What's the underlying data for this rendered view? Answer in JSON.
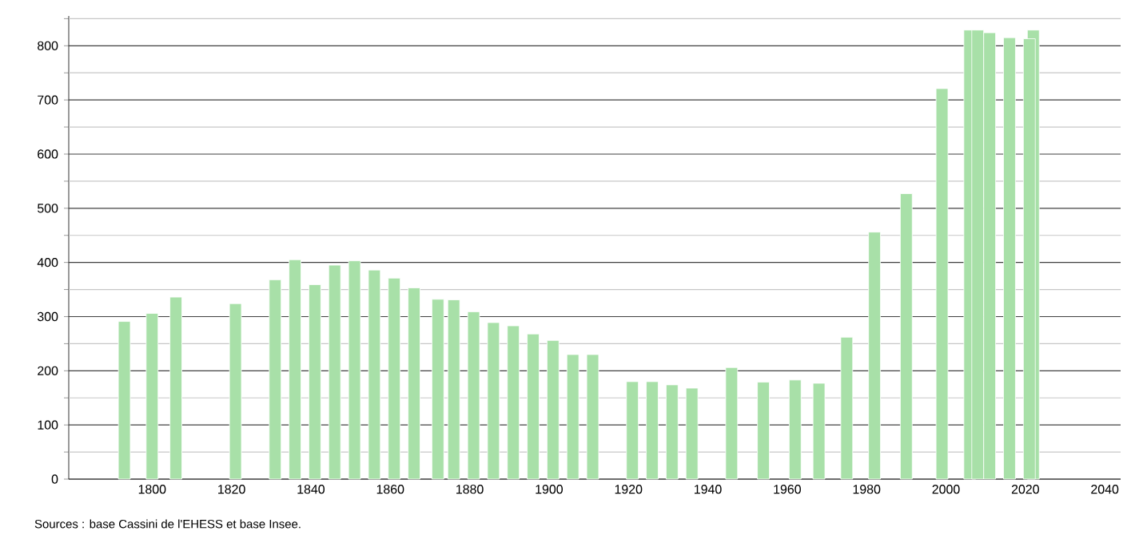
{
  "chart_data": {
    "type": "bar",
    "x": [
      1793,
      1800,
      1806,
      1821,
      1831,
      1836,
      1841,
      1846,
      1851,
      1856,
      1861,
      1866,
      1872,
      1876,
      1881,
      1886,
      1891,
      1896,
      1901,
      1906,
      1911,
      1921,
      1926,
      1931,
      1936,
      1946,
      1954,
      1962,
      1968,
      1975,
      1982,
      1990,
      1999,
      2006,
      2008,
      2011,
      2016,
      2021,
      2022
    ],
    "values": [
      291,
      306,
      336,
      324,
      368,
      405,
      359,
      395,
      403,
      386,
      371,
      353,
      332,
      331,
      309,
      289,
      283,
      268,
      256,
      230,
      230,
      180,
      180,
      174,
      168,
      206,
      179,
      183,
      177,
      262,
      456,
      527,
      721,
      829,
      829,
      824,
      815,
      813,
      829
    ],
    "color": "#a8e0a8",
    "xlim": [
      1779,
      2044
    ],
    "xticks": [
      1800,
      1820,
      1840,
      1860,
      1880,
      1900,
      1920,
      1940,
      1960,
      1980,
      2000,
      2020,
      2040
    ],
    "ylim": [
      0,
      855
    ],
    "yticks": [
      0,
      {
        "value": 50,
        "label": null
      },
      100,
      {
        "value": 150,
        "label": null
      },
      200,
      {
        "value": 250,
        "label": null
      },
      300,
      {
        "value": 350,
        "label": null
      },
      400,
      {
        "value": 450,
        "label": null
      },
      500,
      {
        "value": 550,
        "label": null
      },
      600,
      {
        "value": 650,
        "label": null
      },
      700,
      {
        "value": 750,
        "label": null
      },
      800,
      {
        "value": 850,
        "label": null
      }
    ],
    "grid": "y",
    "annotations": [
      "Sources : base Cassini de l'EHESS et base Insee."
    ]
  }
}
